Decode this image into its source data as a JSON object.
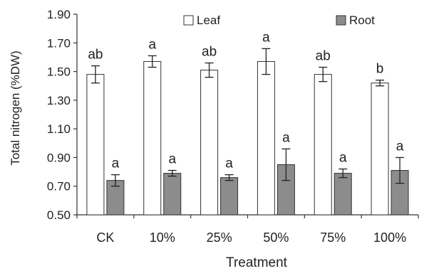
{
  "chart_data": {
    "type": "bar",
    "title": "",
    "xlabel": "Treatment",
    "ylabel": "Total nitrogen (%DW)",
    "ylim": [
      0.5,
      1.9
    ],
    "yticks": [
      0.5,
      0.7,
      0.9,
      1.1,
      1.3,
      1.5,
      1.7,
      1.9
    ],
    "ytick_labels": [
      "0.50",
      "0.70",
      "0.90",
      "1.10",
      "1.30",
      "1.50",
      "1.70",
      "1.90"
    ],
    "categories": [
      "CK",
      "10%",
      "25%",
      "50%",
      "75%",
      "100%"
    ],
    "grid": false,
    "legend_position": "top",
    "series": [
      {
        "name": "Leaf",
        "values": [
          1.48,
          1.57,
          1.51,
          1.57,
          1.48,
          1.42
        ],
        "errors": [
          0.06,
          0.04,
          0.05,
          0.09,
          0.05,
          0.02
        ],
        "letters": [
          "ab",
          "a",
          "ab",
          "a",
          "ab",
          "b"
        ],
        "fill": "#ffffff",
        "stroke": "#333333"
      },
      {
        "name": "Root",
        "values": [
          0.74,
          0.79,
          0.76,
          0.85,
          0.79,
          0.81
        ],
        "errors": [
          0.04,
          0.02,
          0.02,
          0.11,
          0.03,
          0.09
        ],
        "letters": [
          "a",
          "a",
          "a",
          "a",
          "a",
          "a"
        ],
        "fill": "#8c8c8c",
        "stroke": "#333333"
      }
    ]
  }
}
